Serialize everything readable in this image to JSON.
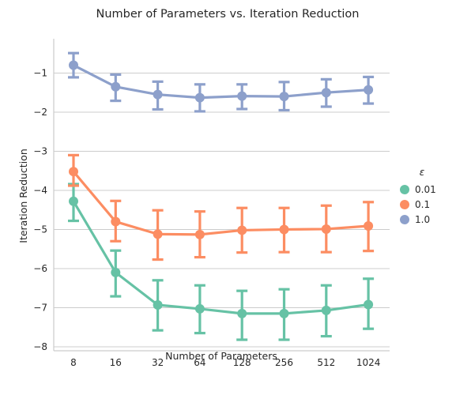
{
  "chart_data": {
    "type": "line",
    "title": "Number of Parameters vs. Iteration Reduction",
    "xlabel": "Number of Parameters",
    "ylabel": "Iteration Reduction",
    "categories": [
      "8",
      "16",
      "32",
      "64",
      "128",
      "256",
      "512",
      "1024"
    ],
    "ylim": [
      -8.2,
      -0.2
    ],
    "yticks": [
      -1,
      -2,
      -3,
      -4,
      -5,
      -6,
      -7,
      -8
    ],
    "ytick_labels": [
      "−1",
      "−2",
      "−3",
      "−4",
      "−5",
      "−6",
      "−7",
      "−8"
    ],
    "grid": "horizontal",
    "legend": {
      "title": "ε",
      "placement": "right"
    },
    "series": [
      {
        "name": "0.01",
        "color": "#66c2a5",
        "values": [
          -4.28,
          -6.1,
          -6.93,
          -7.03,
          -7.15,
          -7.15,
          -7.07,
          -6.92
        ],
        "error_low": [
          -4.78,
          -6.71,
          -7.58,
          -7.65,
          -7.82,
          -7.82,
          -7.73,
          -7.54
        ],
        "error_high": [
          -3.84,
          -5.54,
          -6.3,
          -6.43,
          -6.57,
          -6.53,
          -6.43,
          -6.26
        ]
      },
      {
        "name": "0.1",
        "color": "#fc8d62",
        "values": [
          -3.52,
          -4.8,
          -5.12,
          -5.13,
          -5.02,
          -5.0,
          -4.99,
          -4.91
        ],
        "error_low": [
          -3.88,
          -5.3,
          -5.77,
          -5.71,
          -5.59,
          -5.58,
          -5.58,
          -5.55
        ],
        "error_high": [
          -3.1,
          -4.27,
          -4.51,
          -4.54,
          -4.45,
          -4.45,
          -4.39,
          -4.3
        ]
      },
      {
        "name": "1.0",
        "color": "#8da0cb",
        "values": [
          -0.8,
          -1.35,
          -1.55,
          -1.63,
          -1.59,
          -1.6,
          -1.5,
          -1.43
        ],
        "error_low": [
          -1.11,
          -1.71,
          -1.93,
          -1.98,
          -1.92,
          -1.95,
          -1.86,
          -1.78
        ],
        "error_high": [
          -0.49,
          -1.04,
          -1.22,
          -1.29,
          -1.29,
          -1.23,
          -1.16,
          -1.1
        ]
      }
    ]
  }
}
